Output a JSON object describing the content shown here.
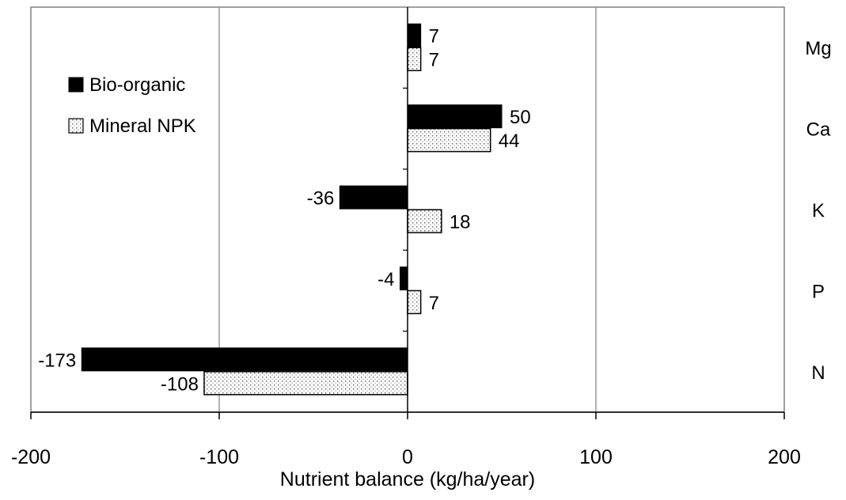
{
  "chart_data": {
    "type": "bar",
    "orientation": "horizontal",
    "categories": [
      "Mg",
      "Ca",
      "K",
      "P",
      "N"
    ],
    "series": [
      {
        "name": "Bio-organic",
        "values": [
          7,
          50,
          -36,
          -4,
          -173
        ],
        "fill": "solid",
        "color": "#000000"
      },
      {
        "name": "Mineral NPK",
        "values": [
          7,
          44,
          18,
          7,
          -108
        ],
        "fill": "dotted",
        "color": "#ffffff"
      }
    ],
    "xlabel": "Nutrient balance (kg/ha/year)",
    "ylabel": "",
    "xlim": [
      -200,
      200
    ],
    "xticks": [
      -200,
      -100,
      0,
      100,
      200
    ],
    "tick_labels": [
      "-200",
      "-100",
      "0",
      "100",
      "200"
    ],
    "data_labels": {
      "Bio-organic": [
        "7",
        "50",
        "-36",
        "-4",
        "-173"
      ],
      "Mineral NPK": [
        "7",
        "44",
        "18",
        "7",
        "-108"
      ]
    },
    "grid": "vertical",
    "legend_position": "top-left"
  }
}
